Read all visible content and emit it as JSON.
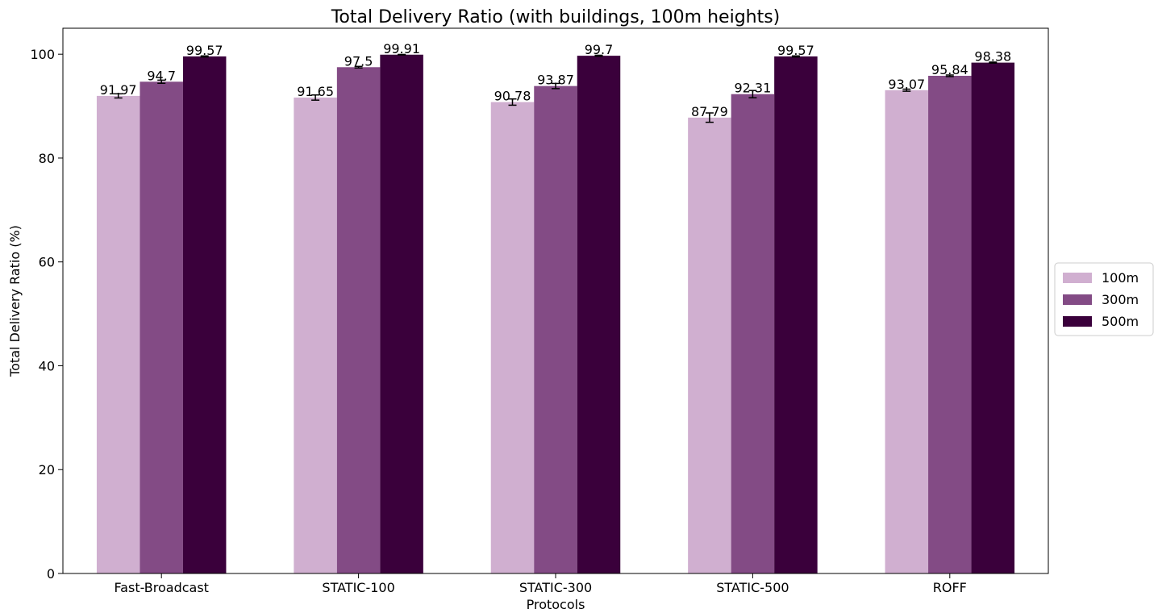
{
  "chart_data": {
    "type": "bar",
    "title": "Total Delivery Ratio (with buildings, 100m heights)",
    "xlabel": "Protocols",
    "ylabel": "Total Delivery Ratio (%)",
    "ylim": [
      0,
      105
    ],
    "yticks": [
      0,
      20,
      40,
      60,
      80,
      100
    ],
    "categories": [
      "Fast-Broadcast",
      "STATIC-100",
      "STATIC-300",
      "STATIC-500",
      "ROFF"
    ],
    "series": [
      {
        "name": "100m",
        "color": "#d0afd0",
        "values": [
          91.97,
          91.65,
          90.78,
          87.79,
          93.07
        ],
        "errors": [
          0.4,
          0.5,
          0.6,
          0.9,
          0.2
        ],
        "labels": [
          "91.97",
          "91.65",
          "90.78",
          "87.79",
          "93.07"
        ]
      },
      {
        "name": "300m",
        "color": "#834b85",
        "values": [
          94.7,
          97.5,
          93.87,
          92.31,
          95.84
        ],
        "errors": [
          0.3,
          0.15,
          0.5,
          0.7,
          0.15
        ],
        "labels": [
          "94.7",
          "97.5",
          "93.87",
          "92.31",
          "95.84"
        ]
      },
      {
        "name": "500m",
        "color": "#3a003b",
        "values": [
          99.57,
          99.91,
          99.7,
          99.57,
          98.38
        ],
        "errors": [
          0.1,
          0.05,
          0.1,
          0.1,
          0.1
        ],
        "labels": [
          "99.57",
          "99.91",
          "99.7",
          "99.57",
          "98.38"
        ]
      }
    ],
    "legend_position": "right-outside",
    "grid": false
  }
}
